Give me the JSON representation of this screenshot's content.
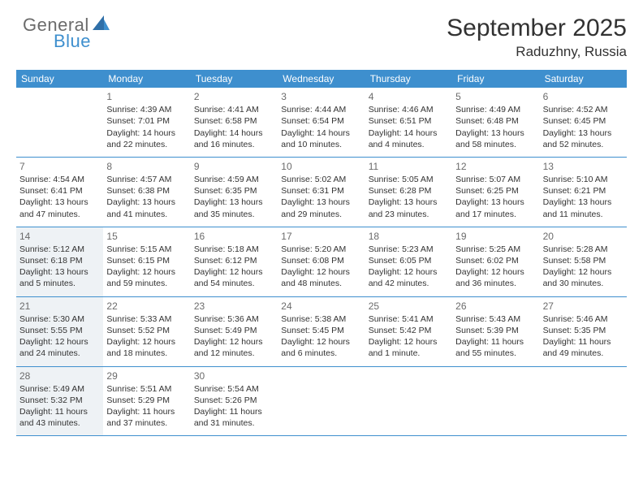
{
  "logo": {
    "part1": "General",
    "part2": "Blue"
  },
  "title": "September 2025",
  "location": "Raduzhny, Russia",
  "colors": {
    "header_bg": "#3e8fce",
    "header_text": "#ffffff",
    "border": "#3e8fce",
    "highlight_bg": "#eef2f5",
    "body_text": "#333333",
    "daynum_text": "#6b6b6b",
    "logo_gray": "#6b6b6b",
    "logo_blue": "#3e8fce"
  },
  "day_headers": [
    "Sunday",
    "Monday",
    "Tuesday",
    "Wednesday",
    "Thursday",
    "Friday",
    "Saturday"
  ],
  "weeks": [
    [
      null,
      {
        "n": "1",
        "sr": "Sunrise: 4:39 AM",
        "ss": "Sunset: 7:01 PM",
        "d1": "Daylight: 14 hours",
        "d2": "and 22 minutes."
      },
      {
        "n": "2",
        "sr": "Sunrise: 4:41 AM",
        "ss": "Sunset: 6:58 PM",
        "d1": "Daylight: 14 hours",
        "d2": "and 16 minutes."
      },
      {
        "n": "3",
        "sr": "Sunrise: 4:44 AM",
        "ss": "Sunset: 6:54 PM",
        "d1": "Daylight: 14 hours",
        "d2": "and 10 minutes."
      },
      {
        "n": "4",
        "sr": "Sunrise: 4:46 AM",
        "ss": "Sunset: 6:51 PM",
        "d1": "Daylight: 14 hours",
        "d2": "and 4 minutes."
      },
      {
        "n": "5",
        "sr": "Sunrise: 4:49 AM",
        "ss": "Sunset: 6:48 PM",
        "d1": "Daylight: 13 hours",
        "d2": "and 58 minutes."
      },
      {
        "n": "6",
        "sr": "Sunrise: 4:52 AM",
        "ss": "Sunset: 6:45 PM",
        "d1": "Daylight: 13 hours",
        "d2": "and 52 minutes."
      }
    ],
    [
      {
        "n": "7",
        "sr": "Sunrise: 4:54 AM",
        "ss": "Sunset: 6:41 PM",
        "d1": "Daylight: 13 hours",
        "d2": "and 47 minutes."
      },
      {
        "n": "8",
        "sr": "Sunrise: 4:57 AM",
        "ss": "Sunset: 6:38 PM",
        "d1": "Daylight: 13 hours",
        "d2": "and 41 minutes."
      },
      {
        "n": "9",
        "sr": "Sunrise: 4:59 AM",
        "ss": "Sunset: 6:35 PM",
        "d1": "Daylight: 13 hours",
        "d2": "and 35 minutes."
      },
      {
        "n": "10",
        "sr": "Sunrise: 5:02 AM",
        "ss": "Sunset: 6:31 PM",
        "d1": "Daylight: 13 hours",
        "d2": "and 29 minutes."
      },
      {
        "n": "11",
        "sr": "Sunrise: 5:05 AM",
        "ss": "Sunset: 6:28 PM",
        "d1": "Daylight: 13 hours",
        "d2": "and 23 minutes."
      },
      {
        "n": "12",
        "sr": "Sunrise: 5:07 AM",
        "ss": "Sunset: 6:25 PM",
        "d1": "Daylight: 13 hours",
        "d2": "and 17 minutes."
      },
      {
        "n": "13",
        "sr": "Sunrise: 5:10 AM",
        "ss": "Sunset: 6:21 PM",
        "d1": "Daylight: 13 hours",
        "d2": "and 11 minutes."
      }
    ],
    [
      {
        "n": "14",
        "sr": "Sunrise: 5:12 AM",
        "ss": "Sunset: 6:18 PM",
        "d1": "Daylight: 13 hours",
        "d2": "and 5 minutes.",
        "hl": true
      },
      {
        "n": "15",
        "sr": "Sunrise: 5:15 AM",
        "ss": "Sunset: 6:15 PM",
        "d1": "Daylight: 12 hours",
        "d2": "and 59 minutes."
      },
      {
        "n": "16",
        "sr": "Sunrise: 5:18 AM",
        "ss": "Sunset: 6:12 PM",
        "d1": "Daylight: 12 hours",
        "d2": "and 54 minutes."
      },
      {
        "n": "17",
        "sr": "Sunrise: 5:20 AM",
        "ss": "Sunset: 6:08 PM",
        "d1": "Daylight: 12 hours",
        "d2": "and 48 minutes."
      },
      {
        "n": "18",
        "sr": "Sunrise: 5:23 AM",
        "ss": "Sunset: 6:05 PM",
        "d1": "Daylight: 12 hours",
        "d2": "and 42 minutes."
      },
      {
        "n": "19",
        "sr": "Sunrise: 5:25 AM",
        "ss": "Sunset: 6:02 PM",
        "d1": "Daylight: 12 hours",
        "d2": "and 36 minutes."
      },
      {
        "n": "20",
        "sr": "Sunrise: 5:28 AM",
        "ss": "Sunset: 5:58 PM",
        "d1": "Daylight: 12 hours",
        "d2": "and 30 minutes."
      }
    ],
    [
      {
        "n": "21",
        "sr": "Sunrise: 5:30 AM",
        "ss": "Sunset: 5:55 PM",
        "d1": "Daylight: 12 hours",
        "d2": "and 24 minutes.",
        "hl": true
      },
      {
        "n": "22",
        "sr": "Sunrise: 5:33 AM",
        "ss": "Sunset: 5:52 PM",
        "d1": "Daylight: 12 hours",
        "d2": "and 18 minutes."
      },
      {
        "n": "23",
        "sr": "Sunrise: 5:36 AM",
        "ss": "Sunset: 5:49 PM",
        "d1": "Daylight: 12 hours",
        "d2": "and 12 minutes."
      },
      {
        "n": "24",
        "sr": "Sunrise: 5:38 AM",
        "ss": "Sunset: 5:45 PM",
        "d1": "Daylight: 12 hours",
        "d2": "and 6 minutes."
      },
      {
        "n": "25",
        "sr": "Sunrise: 5:41 AM",
        "ss": "Sunset: 5:42 PM",
        "d1": "Daylight: 12 hours",
        "d2": "and 1 minute."
      },
      {
        "n": "26",
        "sr": "Sunrise: 5:43 AM",
        "ss": "Sunset: 5:39 PM",
        "d1": "Daylight: 11 hours",
        "d2": "and 55 minutes."
      },
      {
        "n": "27",
        "sr": "Sunrise: 5:46 AM",
        "ss": "Sunset: 5:35 PM",
        "d1": "Daylight: 11 hours",
        "d2": "and 49 minutes."
      }
    ],
    [
      {
        "n": "28",
        "sr": "Sunrise: 5:49 AM",
        "ss": "Sunset: 5:32 PM",
        "d1": "Daylight: 11 hours",
        "d2": "and 43 minutes.",
        "hl": true
      },
      {
        "n": "29",
        "sr": "Sunrise: 5:51 AM",
        "ss": "Sunset: 5:29 PM",
        "d1": "Daylight: 11 hours",
        "d2": "and 37 minutes."
      },
      {
        "n": "30",
        "sr": "Sunrise: 5:54 AM",
        "ss": "Sunset: 5:26 PM",
        "d1": "Daylight: 11 hours",
        "d2": "and 31 minutes."
      },
      null,
      null,
      null,
      null
    ]
  ]
}
